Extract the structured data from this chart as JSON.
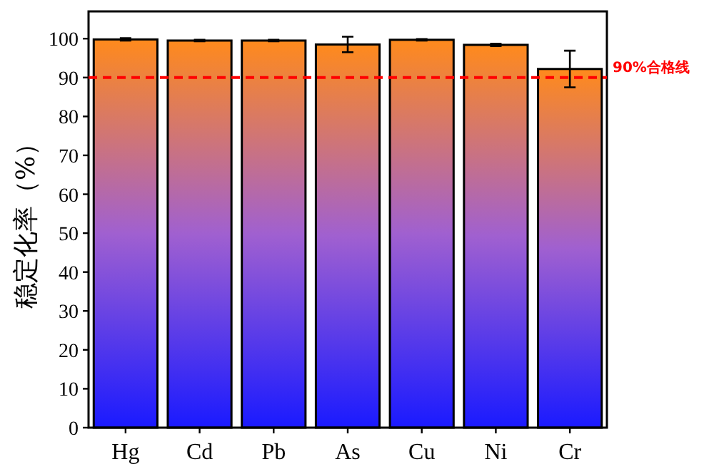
{
  "chart_data": {
    "type": "bar",
    "ylabel": "稳定化率（%）",
    "categories": [
      "Hg",
      "Cd",
      "Pb",
      "As",
      "Cu",
      "Ni",
      "Cr"
    ],
    "values": [
      99.8,
      99.5,
      99.5,
      98.5,
      99.7,
      98.4,
      92.2
    ],
    "errors": [
      0.3,
      0.2,
      0.2,
      2,
      0.2,
      0.3,
      4.7
    ],
    "color": "#ff8a1c",
    "ylim": [
      0,
      107
    ],
    "yticks": [
      0,
      10,
      20,
      30,
      40,
      50,
      60,
      70,
      80,
      90,
      100
    ],
    "ref_lines": [
      {
        "axis": "y",
        "value": 90,
        "label": "90%合格线",
        "color": "#ff0000",
        "line_style": "dashed"
      }
    ]
  }
}
